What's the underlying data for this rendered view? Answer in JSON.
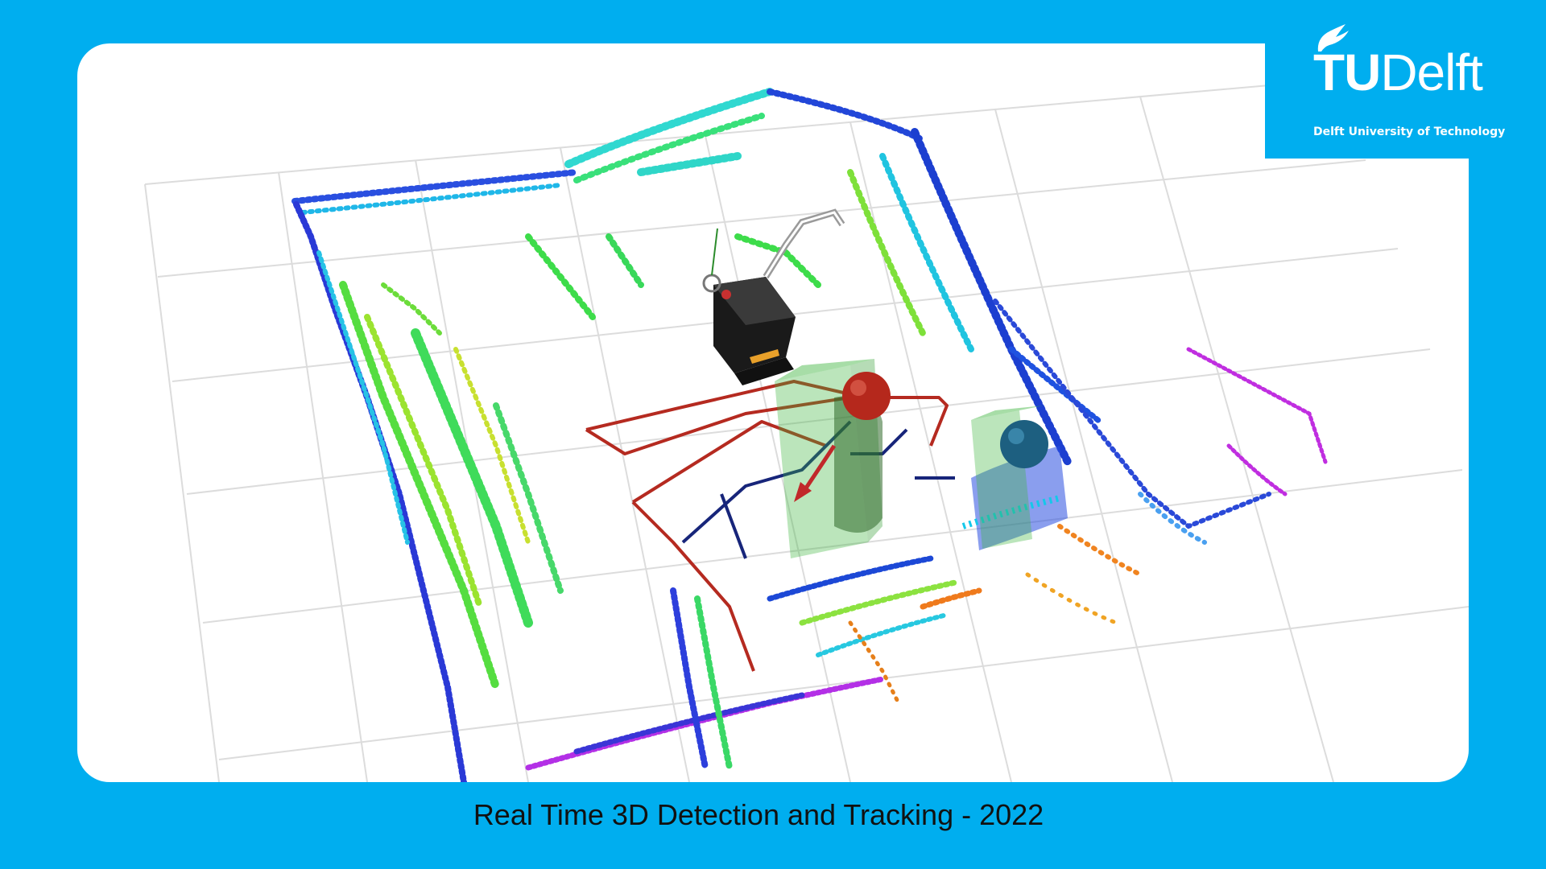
{
  "logo": {
    "brand_bold": "TU",
    "brand_light": "Delft",
    "tagline": "Delft University of Technology"
  },
  "caption": "Real Time 3D Detection and Tracking - 2022",
  "colors": {
    "background": "#00aeef",
    "panel": "#ffffff",
    "track_red": "#b52a20",
    "track_blue": "#17257a",
    "bbox_green": "#3cb43c"
  },
  "scene": {
    "icons": [
      "robot-icon",
      "person-marker-red",
      "person-marker-blue"
    ]
  }
}
